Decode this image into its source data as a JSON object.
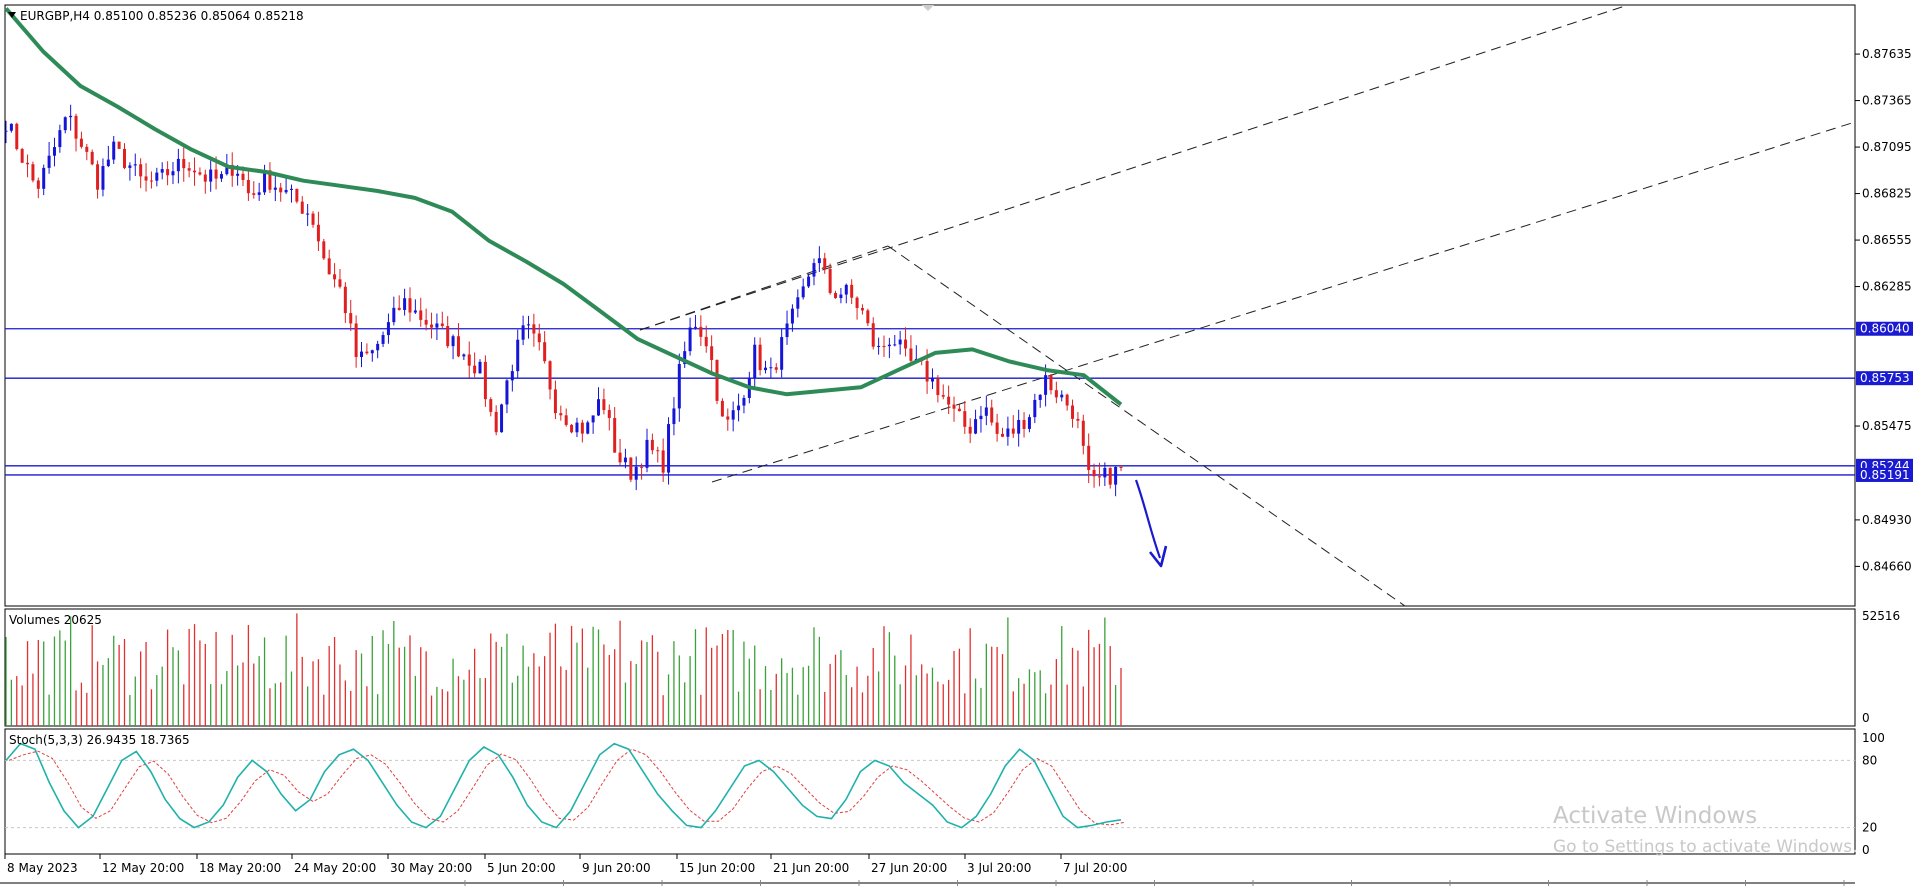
{
  "chart_data": [
    {
      "type": "candlestick",
      "symbol_header": "EURGBP,H4  0.85100 0.85236 0.85064 0.85218",
      "price_axis_ticks": [
        "0.87635",
        "0.87365",
        "0.87095",
        "0.86825",
        "0.86555",
        "0.86285",
        "0.85475",
        "0.84930",
        "0.84660"
      ],
      "ylim": [
        0.8443,
        0.8792
      ],
      "horizontal_levels": [
        {
          "value": 0.8604,
          "label": "0.86040"
        },
        {
          "value": 0.85753,
          "label": "0.85753"
        },
        {
          "value": 0.85244,
          "label": "0.85244"
        },
        {
          "value": 0.85191,
          "label": "0.85191"
        }
      ],
      "time_axis_ticks": [
        "8 May 2023",
        "12 May 20:00",
        "18 May 20:00",
        "24 May 20:00",
        "30 May 20:00",
        "5 Jun 20:00",
        "9 Jun 20:00",
        "15 Jun 20:00",
        "21 Jun 20:00",
        "27 Jun 20:00",
        "3 Jul 20:00",
        "7 Jul 20:00"
      ],
      "price_path": [
        0.8725,
        0.8705,
        0.8685,
        0.8705,
        0.8728,
        0.871,
        0.869,
        0.8708,
        0.87,
        0.8688,
        0.869,
        0.8698,
        0.87,
        0.8692,
        0.869,
        0.87,
        0.868,
        0.8692,
        0.8685,
        0.8678,
        0.867,
        0.864,
        0.8625,
        0.8585,
        0.859,
        0.8605,
        0.862,
        0.8612,
        0.8605,
        0.8598,
        0.859,
        0.858,
        0.8545,
        0.858,
        0.8605,
        0.859,
        0.856,
        0.855,
        0.8545,
        0.8565,
        0.853,
        0.852,
        0.8535,
        0.8525,
        0.8575,
        0.861,
        0.8595,
        0.8545,
        0.856,
        0.859,
        0.8575,
        0.86,
        0.862,
        0.8648,
        0.8625,
        0.8625,
        0.8615,
        0.859,
        0.86,
        0.8585,
        0.858,
        0.857,
        0.8555,
        0.8545,
        0.856,
        0.854,
        0.8545,
        0.8555,
        0.8575,
        0.8565,
        0.8555,
        0.8512,
        0.8518,
        0.8522
      ],
      "moving_average": [
        0.879,
        0.8765,
        0.8745,
        0.8733,
        0.872,
        0.8708,
        0.8698,
        0.8695,
        0.869,
        0.8687,
        0.8684,
        0.868,
        0.8672,
        0.8655,
        0.8643,
        0.863,
        0.8614,
        0.8598,
        0.8588,
        0.8578,
        0.857,
        0.8566,
        0.8568,
        0.857,
        0.858,
        0.859,
        0.8592,
        0.8585,
        0.858,
        0.8577,
        0.856
      ],
      "forecast_arrow_direction": "down"
    },
    {
      "type": "bar",
      "title": "Volumes 20625",
      "y_axis_ticks": [
        "52516",
        "0"
      ],
      "ylim": [
        0,
        52516
      ],
      "bar_count": 208
    },
    {
      "type": "line",
      "title": "Stoch(5,3,3) 26.9435 18.7365",
      "y_axis_ticks": [
        "100",
        "80",
        "20",
        "0"
      ],
      "ylim": [
        0,
        100
      ],
      "levels": [
        80,
        20
      ],
      "k_line": [
        80,
        95,
        90,
        60,
        35,
        20,
        30,
        55,
        80,
        88,
        70,
        45,
        28,
        20,
        25,
        40,
        65,
        80,
        70,
        50,
        35,
        45,
        70,
        85,
        90,
        80,
        60,
        40,
        25,
        20,
        30,
        55,
        80,
        92,
        85,
        65,
        40,
        25,
        20,
        35,
        60,
        85,
        95,
        90,
        70,
        50,
        35,
        22,
        20,
        35,
        55,
        75,
        80,
        70,
        55,
        40,
        30,
        28,
        45,
        70,
        80,
        75,
        60,
        50,
        40,
        25,
        20,
        30,
        50,
        75,
        90,
        80,
        55,
        30,
        20,
        22,
        25,
        27
      ]
    }
  ],
  "colors": {
    "bull_candle": "#1515d8",
    "bear_candle": "#e02020",
    "moving_average": "#2e8b57",
    "level_line": "#1a1ad0",
    "volume_up": "#3aa23a",
    "volume_down": "#e03030",
    "stoch_main": "#20b2aa",
    "stoch_signal": "#e04040"
  },
  "watermark": {
    "line1": "Activate Windows",
    "line2": "Go to Settings to activate Windows."
  }
}
